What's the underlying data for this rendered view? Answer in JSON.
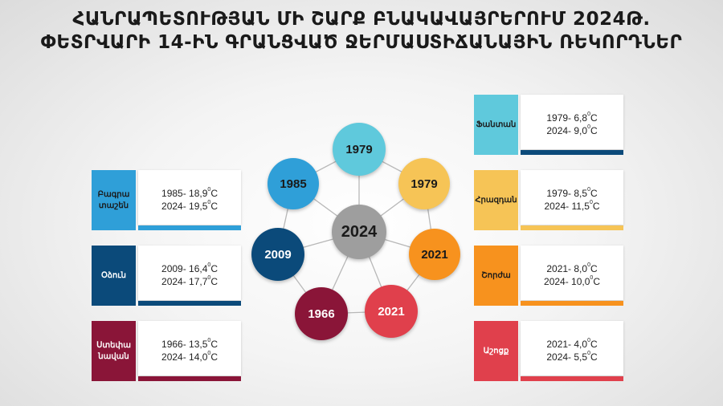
{
  "title": {
    "line1": "ՀԱՆՐԱՊԵՏՈՒԹՅԱՆ ՄԻ ՇԱՐՔ ԲՆԱԿԱՎԱՅՐԵՐՈՒՄ 2024Թ.",
    "line2": "ՓԵՏՐՎԱՐԻ 14-ԻՆ ԳՐԱՆՑՎԱԾ ՋԵՐՄԱՍՏԻՃԱՆԱՅԻՆ ՌԵԿՈՐԴՆԵՐ"
  },
  "center": {
    "label": "2024",
    "color": "#9e9e9e"
  },
  "nodes": [
    {
      "label": "1979",
      "color": "#5fc9dc",
      "text_color": "#1a1a1a"
    },
    {
      "label": "1979",
      "color": "#f6c456",
      "text_color": "#1a1a1a"
    },
    {
      "label": "2021",
      "color": "#f7921e",
      "text_color": "#1a1a1a"
    },
    {
      "label": "2021",
      "color": "#e0404c",
      "text_color": "#ffffff"
    },
    {
      "label": "1966",
      "color": "#8a1538",
      "text_color": "#ffffff"
    },
    {
      "label": "2009",
      "color": "#0b4a7a",
      "text_color": "#ffffff"
    },
    {
      "label": "1985",
      "color": "#2f9fd8",
      "text_color": "#1a1a1a"
    }
  ],
  "cards": {
    "left": [
      {
        "name": "Բագրա\nտաշեն",
        "old_year": "1985",
        "old_temp": "18,9",
        "new_year": "2024",
        "new_temp": "19,5",
        "color": "#2f9fd8",
        "tab_text_color": "#1a1a1a"
      },
      {
        "name": "Օձուն",
        "old_year": "2009",
        "old_temp": "16,4",
        "new_year": "2024",
        "new_temp": "17,7",
        "color": "#0b4a7a",
        "tab_text_color": "#ffffff"
      },
      {
        "name": "Ստեփա\nնավան",
        "old_year": "1966",
        "old_temp": "13,5",
        "new_year": "2024",
        "new_temp": "14,0",
        "color": "#8a1538",
        "tab_text_color": "#ffffff"
      }
    ],
    "right": [
      {
        "name": "Ֆանտան",
        "old_year": "1979",
        "old_temp": "6,8",
        "new_year": "2024",
        "new_temp": "9,0",
        "color": "#5fc9dc",
        "bar_color": "#0b4a7a",
        "tab_text_color": "#1a1a1a"
      },
      {
        "name": "Հրազդան",
        "old_year": "1979",
        "old_temp": "8,5",
        "new_year": "2024",
        "new_temp": "11,5",
        "color": "#f6c456",
        "bar_color": "#f6c456",
        "tab_text_color": "#1a1a1a"
      },
      {
        "name": "Շորժա",
        "old_year": "2021",
        "old_temp": "8,0",
        "new_year": "2024",
        "new_temp": "10,0",
        "color": "#f7921e",
        "bar_color": "#f7921e",
        "tab_text_color": "#1a1a1a"
      },
      {
        "name": "Աշոցք",
        "old_year": "2021",
        "old_temp": "4,0",
        "new_year": "2024",
        "new_temp": "5,5",
        "color": "#e0404c",
        "bar_color": "#e0404c",
        "tab_text_color": "#ffffff"
      }
    ]
  },
  "degree_symbol": "0",
  "unit": "C",
  "separator": "- "
}
